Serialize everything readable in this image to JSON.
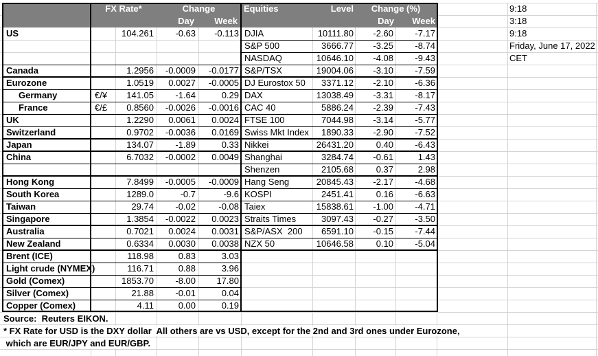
{
  "sheet": {
    "colors": {
      "header_bg": "#7f7f7f",
      "header_text": "#ffffff",
      "gridline": "#d4d4d4",
      "border": "#000000",
      "text": "#000000",
      "background": "#ffffff"
    },
    "times_panel": {
      "rows": [
        "9:18",
        "3:18",
        "9:18",
        "Friday, June 17, 2022",
        "CET"
      ]
    },
    "fx_table": {
      "header": {
        "rate": "FX Rate*",
        "change": "Change",
        "day": "Day",
        "week": "Week"
      },
      "rows": [
        {
          "label": "US",
          "marker": "",
          "rate": "104.261",
          "day": "-0.63",
          "week": "-0.113",
          "indent": false
        },
        {
          "label": "",
          "marker": "",
          "rate": "",
          "day": "",
          "week": "",
          "indent": false
        },
        {
          "label": "",
          "marker": "",
          "rate": "",
          "day": "",
          "week": "",
          "indent": false
        },
        {
          "label": "Canada",
          "marker": "",
          "rate": "1.2956",
          "day": "-0.0009",
          "week": "-0.0177",
          "indent": false
        },
        {
          "label": "Eurozone",
          "marker": "",
          "rate": "1.0519",
          "day": "0.0027",
          "week": "-0.0005",
          "indent": false
        },
        {
          "label": "Germany",
          "marker": "€/¥",
          "rate": "141.05",
          "day": "-1.64",
          "week": "0.29",
          "indent": true
        },
        {
          "label": "France",
          "marker": "€/£",
          "rate": "0.8560",
          "day": "-0.0026",
          "week": "-0.0016",
          "indent": true
        },
        {
          "label": "UK",
          "marker": "",
          "rate": "1.2290",
          "day": "0.0061",
          "week": "0.0024",
          "indent": false
        },
        {
          "label": "Switzerland",
          "marker": "",
          "rate": "0.9702",
          "day": "-0.0036",
          "week": "0.0169",
          "indent": false
        },
        {
          "label": "Japan",
          "marker": "",
          "rate": "134.07",
          "day": "-1.89",
          "week": "0.33",
          "indent": false
        },
        {
          "label": "China",
          "marker": "",
          "rate": "6.7032",
          "day": "-0.0002",
          "week": "0.0049",
          "indent": false
        },
        {
          "label": "",
          "marker": "",
          "rate": "",
          "day": "",
          "week": "",
          "indent": false
        },
        {
          "label": "Hong Kong",
          "marker": "",
          "rate": "7.8499",
          "day": "-0.0005",
          "week": "-0.0009",
          "indent": false
        },
        {
          "label": "South Korea",
          "marker": "",
          "rate": "1289.0",
          "day": "-0.7",
          "week": "-9.6",
          "indent": false
        },
        {
          "label": "Taiwan",
          "marker": "",
          "rate": "29.74",
          "day": "-0.02",
          "week": "-0.08",
          "indent": false
        },
        {
          "label": "Singapore",
          "marker": "",
          "rate": "1.3854",
          "day": "-0.0022",
          "week": "0.0023",
          "indent": false
        },
        {
          "label": "Australia",
          "marker": "",
          "rate": "0.7021",
          "day": "0.0024",
          "week": "0.0031",
          "indent": false
        },
        {
          "label": "New Zealand",
          "marker": "",
          "rate": "0.6334",
          "day": "0.0030",
          "week": "0.0038",
          "indent": false
        },
        {
          "label": "Brent (ICE)",
          "marker": "",
          "rate": "118.98",
          "day": "0.83",
          "week": "3.03",
          "indent": false
        },
        {
          "label": "Light crude (NYMEX)",
          "marker": "",
          "rate": "116.71",
          "day": "0.88",
          "week": "3.96",
          "indent": false
        },
        {
          "label": "Gold (Comex)",
          "marker": "",
          "rate": "1853.70",
          "day": "-8.00",
          "week": "17.80",
          "indent": false
        },
        {
          "label": "Silver (Comex)",
          "marker": "",
          "rate": "21.88",
          "day": "-0.01",
          "week": "0.04",
          "indent": false
        },
        {
          "label": "Copper (Comex)",
          "marker": "",
          "rate": "4.11",
          "day": "0.00",
          "week": "0.19",
          "indent": false
        }
      ]
    },
    "eq_table": {
      "header": {
        "title": "Equities",
        "level": "Level",
        "change_pct": "Change (%)",
        "day": "Day",
        "week": "Week"
      },
      "rows": [
        {
          "label": "DJIA",
          "level": "10111.80",
          "day": "-2.60",
          "week": "-7.17"
        },
        {
          "label": "S&P 500",
          "level": "3666.77",
          "day": "-3.25",
          "week": "-8.74"
        },
        {
          "label": "NASDAQ",
          "level": "10646.10",
          "day": "-4.08",
          "week": "-9.43"
        },
        {
          "label": "S&P/TSX",
          "level": "19004.06",
          "day": "-3.10",
          "week": "-7.59"
        },
        {
          "label": "DJ Eurostox 50",
          "level": "3371.12",
          "day": "-2.10",
          "week": "-6.36"
        },
        {
          "label": "DAX",
          "level": "13038.49",
          "day": "-3.31",
          "week": "-8.17"
        },
        {
          "label": "CAC 40",
          "level": "5886.24",
          "day": "-2.39",
          "week": "-7.43"
        },
        {
          "label": "FTSE 100",
          "level": "7044.98",
          "day": "-3.14",
          "week": "-5.77"
        },
        {
          "label": "Swiss Mkt Index",
          "level": "1890.33",
          "day": "-2.90",
          "week": "-7.52"
        },
        {
          "label": "Nikkei",
          "level": "26431.20",
          "day": "0.40",
          "week": "-6.43"
        },
        {
          "label": "Shanghai",
          "level": "3284.74",
          "day": "-0.61",
          "week": "1.43"
        },
        {
          "label": "Shenzen",
          "level": "2105.68",
          "day": "0.37",
          "week": "2.98"
        },
        {
          "label": "Hang Seng",
          "level": "20845.43",
          "day": "-2.17",
          "week": "-4.68"
        },
        {
          "label": "KOSPI",
          "level": "2451.41",
          "day": "0.16",
          "week": "-6.63"
        },
        {
          "label": "Taiex",
          "level": "15838.61",
          "day": "-1.00",
          "week": "-4.71"
        },
        {
          "label": "Straits Times",
          "level": "3097.43",
          "day": "-0.27",
          "week": "-3.50"
        },
        {
          "label": "S&P/ASX  200",
          "level": "6591.10",
          "day": "-0.15",
          "week": "-7.44"
        },
        {
          "label": "NZX 50",
          "level": "10646.58",
          "day": "0.10",
          "week": "-5.04"
        },
        {
          "label": "",
          "level": "",
          "day": "",
          "week": ""
        },
        {
          "label": "",
          "level": "",
          "day": "",
          "week": ""
        },
        {
          "label": "",
          "level": "",
          "day": "",
          "week": ""
        },
        {
          "label": "",
          "level": "",
          "day": "",
          "week": ""
        },
        {
          "label": "",
          "level": "",
          "day": "",
          "week": ""
        }
      ]
    },
    "footer": {
      "source": "Source:  Reuters EIKON.",
      "note1": "* FX Rate for USD is the DXY dollar  All others are vs USD, except for the 2nd and 3rd ones under Eurozone,",
      "note2": " which are EUR/JPY and EUR/GBP."
    }
  }
}
